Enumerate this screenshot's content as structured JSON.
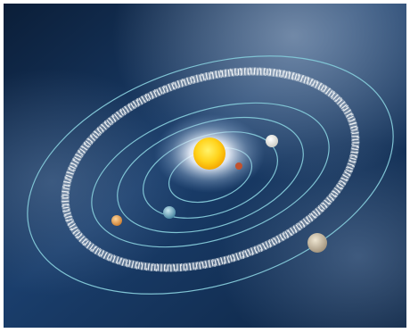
{
  "image": {
    "subject": "",
    "text": []
  },
  "palette": {
    "frame": "#ffffff",
    "space_dark": "#0e2440",
    "space_mid": "#1d4170",
    "space_haze": "#5f7a9e",
    "orbit_line": "#7fc3d3",
    "asteroid_belt": "#e9eef2",
    "sun_core": "#ffd21a",
    "sun_glow": "#ffffff",
    "planet_inner_red": "#c0522f",
    "planet_inner_white": "#f2f2ee",
    "planet_earth": "#6aa6c6",
    "planet_mars": "#e0a14e",
    "planet_jupiter": "#cbbfa8"
  },
  "icons": [
    "sun-icon",
    "planet-icon",
    "asteroid-belt-icon",
    "orbit-icon"
  ]
}
